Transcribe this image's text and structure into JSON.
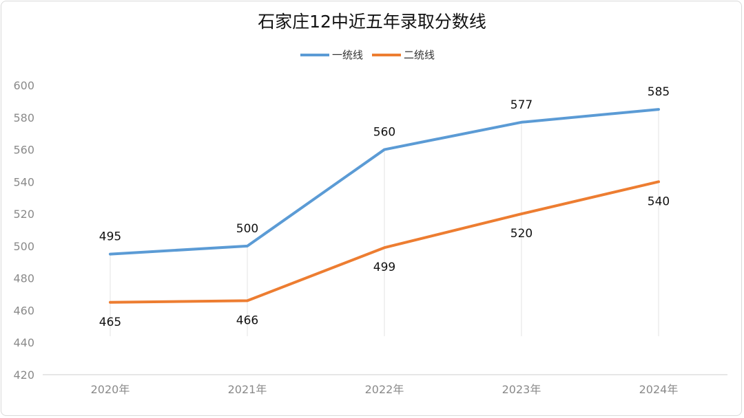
{
  "chart_data": {
    "type": "line",
    "title": "石家庄12中近五年录取分数线",
    "categories": [
      "2020年",
      "2021年",
      "2022年",
      "2023年",
      "2024年"
    ],
    "series": [
      {
        "name": "一统线",
        "values": [
          495,
          500,
          560,
          577,
          585
        ],
        "color": "#5b9bd5"
      },
      {
        "name": "二统线",
        "values": [
          465,
          466,
          499,
          520,
          540
        ],
        "color": "#ed7d31"
      }
    ],
    "ylim": [
      420,
      600
    ],
    "yticks": [
      420,
      440,
      460,
      480,
      500,
      520,
      540,
      560,
      580,
      600
    ],
    "legend_position": "top-center",
    "grid": false
  }
}
